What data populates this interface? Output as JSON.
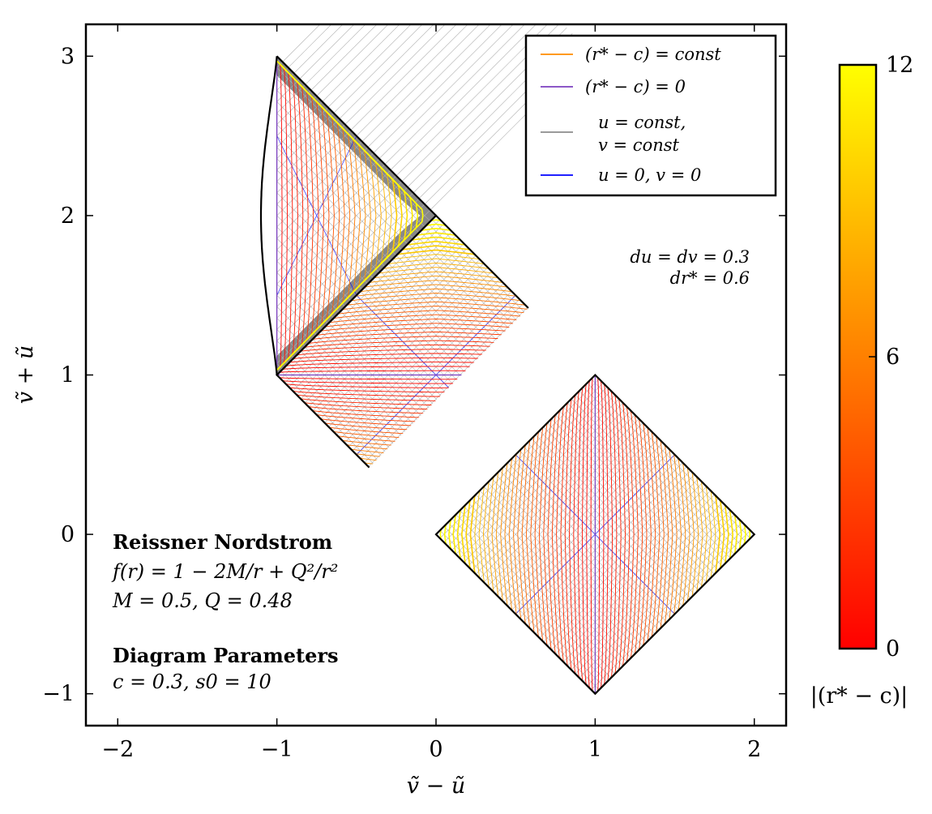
{
  "chart_data": {
    "type": "line",
    "title": "",
    "xlabel": "ṽ − ũ",
    "ylabel": "ṽ + ũ",
    "xlim": [
      -2.2,
      2.2
    ],
    "ylim": [
      -1.2,
      3.2
    ],
    "xticks": [
      -2,
      -1,
      0,
      1,
      2
    ],
    "yticks": [
      -1,
      0,
      1,
      2,
      3
    ],
    "xtick_labels": [
      "−2",
      "−1",
      "0",
      "1",
      "2"
    ],
    "ytick_labels": [
      "−1",
      "0",
      "1",
      "2",
      "3"
    ],
    "grid": false,
    "legend_position": "top-right",
    "legend": [
      {
        "label": "(r* − c) = const",
        "color": "#ff8c00"
      },
      {
        "label": "(r* − c) = 0",
        "color": "#7b3fbf"
      },
      {
        "label": "u = const,",
        "label2": "v = const",
        "color": "#8c8c8c"
      },
      {
        "label": "u = 0, v = 0",
        "color": "#0000ff"
      }
    ],
    "annotations": {
      "step_line1": "du = dv = 0.3",
      "step_line2": "dr* = 0.6",
      "model_title": "Reissner Nordstrom",
      "model_fn": "f(r) = 1 − 2M/r + Q²/r²",
      "model_params": "M = 0.5, Q = 0.48",
      "params_title": "Diagram Parameters",
      "params_values": "c = 0.3, s0 = 10"
    },
    "diamonds": [
      {
        "center": [
          0,
          1
        ],
        "half_width": 1
      },
      {
        "center": [
          1,
          0
        ],
        "half_width": 1
      }
    ],
    "triangle": {
      "vertices": [
        [
          -1,
          1
        ],
        [
          0,
          2
        ],
        [
          -1,
          3
        ]
      ],
      "left_edge_min_x": -1.1,
      "left_edge_extremum_y": 2
    },
    "params": {
      "M": 0.5,
      "Q": 0.48,
      "c": 0.3,
      "s0": 10,
      "du": 0.3,
      "dv": 0.3,
      "dr_star": 0.6
    },
    "colorbar": {
      "label": "|(r* − c)|",
      "min": 0,
      "max": 12,
      "ticks": [
        0,
        6,
        12
      ],
      "tick_labels": [
        "0",
        "6",
        "12"
      ],
      "colormap": [
        "#ff0000",
        "#ff8000",
        "#ffff00"
      ]
    }
  }
}
